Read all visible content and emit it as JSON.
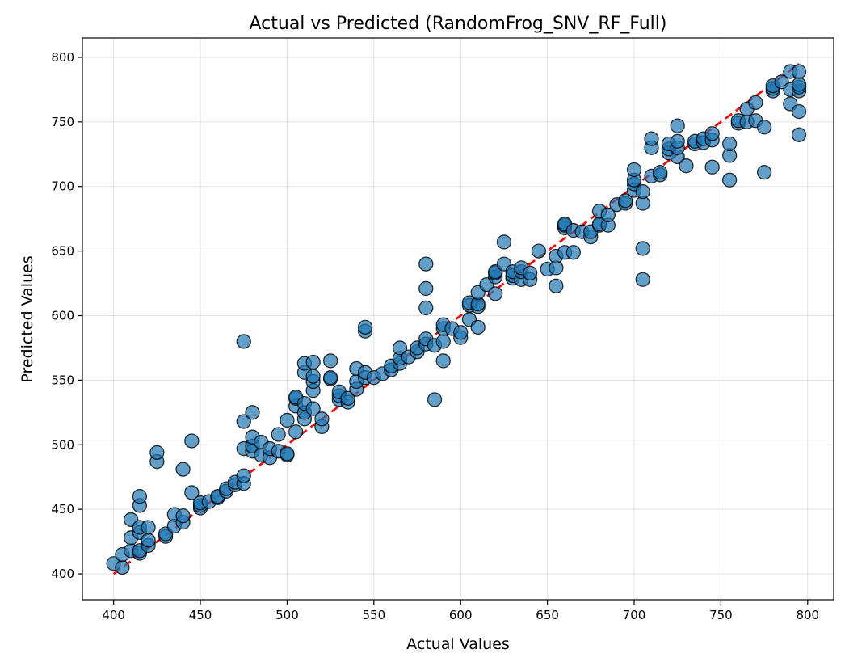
{
  "chart_data": {
    "type": "scatter",
    "title": "Actual vs Predicted (RandomFrog_SNV_RF_Full)",
    "xlabel": "Actual Values",
    "ylabel": "Predicted Values",
    "xlim": [
      382,
      815
    ],
    "ylim": [
      380,
      815
    ],
    "xticks": [
      400,
      450,
      500,
      550,
      600,
      650,
      700,
      750,
      800
    ],
    "yticks": [
      400,
      450,
      500,
      550,
      600,
      650,
      700,
      750,
      800
    ],
    "grid": true,
    "colors": {
      "points": "#1f77b4",
      "reference_line": "#ff0000"
    },
    "reference_line": {
      "x": [
        400,
        795
      ],
      "y": [
        400,
        795
      ],
      "style": "dashed"
    },
    "points": [
      [
        400,
        408
      ],
      [
        405,
        405
      ],
      [
        405,
        415
      ],
      [
        410,
        418
      ],
      [
        410,
        428
      ],
      [
        410,
        442
      ],
      [
        415,
        416
      ],
      [
        415,
        418
      ],
      [
        415,
        432
      ],
      [
        415,
        436
      ],
      [
        415,
        453
      ],
      [
        415,
        460
      ],
      [
        420,
        422
      ],
      [
        420,
        426
      ],
      [
        420,
        436
      ],
      [
        425,
        487
      ],
      [
        425,
        494
      ],
      [
        430,
        429
      ],
      [
        430,
        431
      ],
      [
        435,
        437
      ],
      [
        435,
        446
      ],
      [
        440,
        440
      ],
      [
        440,
        445
      ],
      [
        440,
        481
      ],
      [
        445,
        463
      ],
      [
        445,
        503
      ],
      [
        450,
        451
      ],
      [
        450,
        453
      ],
      [
        450,
        455
      ],
      [
        455,
        456
      ],
      [
        460,
        459
      ],
      [
        460,
        460
      ],
      [
        465,
        464
      ],
      [
        465,
        466
      ],
      [
        470,
        469
      ],
      [
        470,
        471
      ],
      [
        475,
        470
      ],
      [
        475,
        476
      ],
      [
        475,
        497
      ],
      [
        475,
        518
      ],
      [
        475,
        580
      ],
      [
        480,
        495
      ],
      [
        480,
        499
      ],
      [
        480,
        506
      ],
      [
        480,
        525
      ],
      [
        485,
        492
      ],
      [
        485,
        502
      ],
      [
        490,
        490
      ],
      [
        490,
        497
      ],
      [
        495,
        495
      ],
      [
        495,
        508
      ],
      [
        500,
        492
      ],
      [
        500,
        493
      ],
      [
        500,
        519
      ],
      [
        505,
        510
      ],
      [
        505,
        530
      ],
      [
        505,
        536
      ],
      [
        505,
        537
      ],
      [
        510,
        520
      ],
      [
        510,
        525
      ],
      [
        510,
        532
      ],
      [
        510,
        556
      ],
      [
        510,
        563
      ],
      [
        515,
        528
      ],
      [
        515,
        542
      ],
      [
        515,
        549
      ],
      [
        515,
        553
      ],
      [
        515,
        564
      ],
      [
        520,
        514
      ],
      [
        520,
        520
      ],
      [
        525,
        551
      ],
      [
        525,
        552
      ],
      [
        525,
        565
      ],
      [
        530,
        535
      ],
      [
        530,
        538
      ],
      [
        530,
        541
      ],
      [
        535,
        533
      ],
      [
        535,
        536
      ],
      [
        540,
        543
      ],
      [
        540,
        549
      ],
      [
        540,
        559
      ],
      [
        545,
        552
      ],
      [
        545,
        556
      ],
      [
        545,
        588
      ],
      [
        545,
        591
      ],
      [
        550,
        552
      ],
      [
        555,
        555
      ],
      [
        560,
        558
      ],
      [
        560,
        561
      ],
      [
        565,
        563
      ],
      [
        565,
        567
      ],
      [
        565,
        575
      ],
      [
        570,
        568
      ],
      [
        575,
        572
      ],
      [
        575,
        575
      ],
      [
        580,
        578
      ],
      [
        580,
        582
      ],
      [
        580,
        606
      ],
      [
        580,
        621
      ],
      [
        580,
        640
      ],
      [
        585,
        535
      ],
      [
        585,
        577
      ],
      [
        590,
        565
      ],
      [
        590,
        580
      ],
      [
        590,
        590
      ],
      [
        590,
        593
      ],
      [
        595,
        590
      ],
      [
        600,
        583
      ],
      [
        600,
        587
      ],
      [
        605,
        597
      ],
      [
        605,
        608
      ],
      [
        605,
        610
      ],
      [
        610,
        591
      ],
      [
        610,
        607
      ],
      [
        610,
        609
      ],
      [
        610,
        618
      ],
      [
        615,
        624
      ],
      [
        620,
        617
      ],
      [
        620,
        630
      ],
      [
        620,
        633
      ],
      [
        620,
        634
      ],
      [
        625,
        640
      ],
      [
        625,
        657
      ],
      [
        630,
        629
      ],
      [
        630,
        631
      ],
      [
        630,
        634
      ],
      [
        635,
        628
      ],
      [
        635,
        634
      ],
      [
        635,
        637
      ],
      [
        640,
        628
      ],
      [
        640,
        633
      ],
      [
        645,
        650
      ],
      [
        650,
        636
      ],
      [
        655,
        623
      ],
      [
        655,
        637
      ],
      [
        655,
        646
      ],
      [
        660,
        649
      ],
      [
        660,
        668
      ],
      [
        660,
        670
      ],
      [
        660,
        671
      ],
      [
        665,
        649
      ],
      [
        665,
        666
      ],
      [
        670,
        665
      ],
      [
        675,
        661
      ],
      [
        675,
        665
      ],
      [
        680,
        670
      ],
      [
        680,
        671
      ],
      [
        680,
        681
      ],
      [
        685,
        670
      ],
      [
        685,
        678
      ],
      [
        690,
        686
      ],
      [
        695,
        687
      ],
      [
        695,
        689
      ],
      [
        700,
        697
      ],
      [
        700,
        702
      ],
      [
        700,
        705
      ],
      [
        700,
        713
      ],
      [
        705,
        628
      ],
      [
        705,
        652
      ],
      [
        705,
        687
      ],
      [
        705,
        696
      ],
      [
        710,
        708
      ],
      [
        710,
        730
      ],
      [
        710,
        737
      ],
      [
        715,
        709
      ],
      [
        715,
        711
      ],
      [
        720,
        726
      ],
      [
        720,
        729
      ],
      [
        720,
        733
      ],
      [
        725,
        723
      ],
      [
        725,
        730
      ],
      [
        725,
        735
      ],
      [
        725,
        747
      ],
      [
        730,
        716
      ],
      [
        735,
        733
      ],
      [
        735,
        735
      ],
      [
        740,
        734
      ],
      [
        740,
        737
      ],
      [
        745,
        715
      ],
      [
        745,
        736
      ],
      [
        745,
        741
      ],
      [
        755,
        705
      ],
      [
        755,
        724
      ],
      [
        755,
        733
      ],
      [
        760,
        749
      ],
      [
        760,
        751
      ],
      [
        765,
        750
      ],
      [
        765,
        760
      ],
      [
        770,
        751
      ],
      [
        770,
        765
      ],
      [
        775,
        711
      ],
      [
        775,
        746
      ],
      [
        780,
        774
      ],
      [
        780,
        776
      ],
      [
        780,
        778
      ],
      [
        785,
        781
      ],
      [
        790,
        764
      ],
      [
        790,
        775
      ],
      [
        790,
        789
      ],
      [
        795,
        740
      ],
      [
        795,
        758
      ],
      [
        795,
        774
      ],
      [
        795,
        777
      ],
      [
        795,
        779
      ],
      [
        795,
        789
      ]
    ]
  }
}
